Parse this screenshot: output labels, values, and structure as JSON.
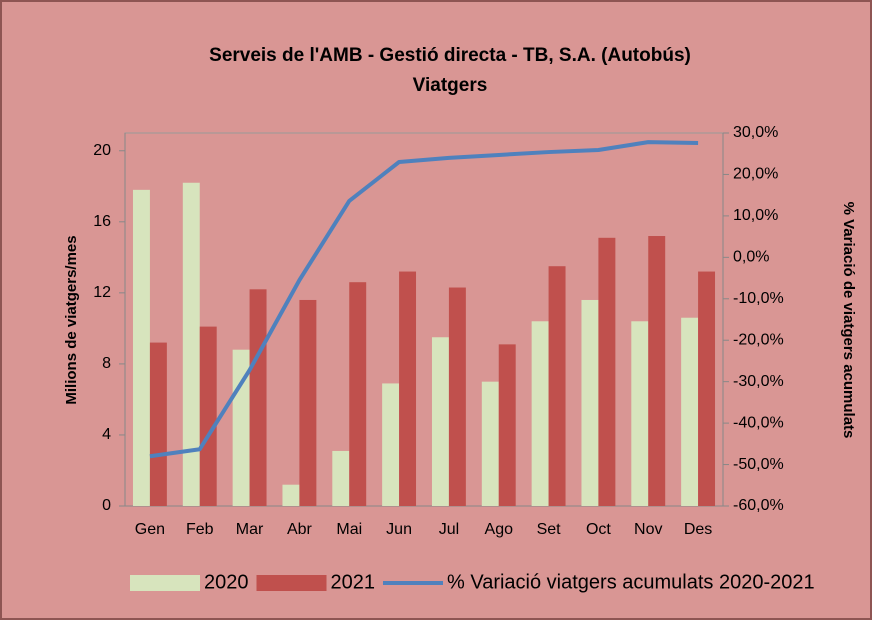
{
  "chart_data": {
    "type": "bar",
    "title": "Serveis de l'AMB - Gestió directa - TB, S.A. (Autobús)",
    "subtitle": "Viatgers",
    "y_label": "Milions de viatgers/mes",
    "y2_label": "% Variació de viatgers acumulats",
    "categories": [
      "Gen",
      "Feb",
      "Mar",
      "Abr",
      "Mai",
      "Jun",
      "Jul",
      "Ago",
      "Set",
      "Oct",
      "Nov",
      "Des"
    ],
    "series": [
      {
        "name": "2020",
        "type": "bar",
        "color": "#d7e4bd",
        "values": [
          17.8,
          18.2,
          8.8,
          1.2,
          3.1,
          6.9,
          9.5,
          7.0,
          10.4,
          11.6,
          10.4,
          10.6
        ]
      },
      {
        "name": "2021",
        "type": "bar",
        "color": "#c0504d",
        "values": [
          9.2,
          10.1,
          12.2,
          11.6,
          12.6,
          13.2,
          12.3,
          9.1,
          13.5,
          15.1,
          15.2,
          13.2
        ]
      },
      {
        "name": "% Variació viatgers acumulats 2020-2021",
        "type": "line",
        "axis": "y2",
        "color": "#4f81bd",
        "values": [
          -48,
          -46.3,
          -27.2,
          -5.5,
          13.6,
          23,
          24,
          24.7,
          25.4,
          25.9,
          27.8,
          27.6
        ]
      }
    ],
    "ylim": [
      0,
      21
    ],
    "yticks": [
      0,
      4,
      8,
      12,
      16,
      20
    ],
    "y2lim": [
      -60,
      30
    ],
    "y2ticks": [
      {
        "value": 30,
        "label": "30,0%"
      },
      {
        "value": 20,
        "label": "20,0%"
      },
      {
        "value": 10,
        "label": "10,0%"
      },
      {
        "value": 0,
        "label": "0,0%"
      },
      {
        "value": -10,
        "label": "-10,0%"
      },
      {
        "value": -20,
        "label": "-20,0%"
      },
      {
        "value": -30,
        "label": "-30,0%"
      },
      {
        "value": -40,
        "label": "-40,0%"
      },
      {
        "value": -50,
        "label": "-50,0%"
      },
      {
        "value": -60,
        "label": "-60,0%"
      }
    ],
    "legend": "bottom"
  }
}
